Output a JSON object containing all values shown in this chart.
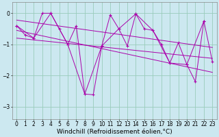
{
  "bg_color": "#cce8f0",
  "line_color": "#aa00aa",
  "grid_color": "#99ccbb",
  "xlabel": "Windchill (Refroidissement éolien,°C)",
  "xlabel_fontsize": 6.5,
  "tick_fontsize": 5.5,
  "ylim": [
    -3.4,
    0.35
  ],
  "xlim": [
    -0.5,
    23.5
  ],
  "yticks": [
    0,
    -1,
    -2,
    -3
  ],
  "xticks": [
    0,
    1,
    2,
    3,
    4,
    5,
    6,
    7,
    8,
    9,
    10,
    11,
    12,
    13,
    14,
    15,
    16,
    17,
    18,
    19,
    20,
    21,
    22,
    23
  ],
  "series1_x": [
    0,
    1,
    2,
    3,
    4,
    5,
    6,
    7,
    8,
    9,
    10,
    11,
    12,
    13,
    14,
    15,
    16,
    17,
    18,
    19,
    20,
    21,
    22,
    23
  ],
  "series1_y": [
    -0.4,
    -0.7,
    -0.8,
    0.0,
    0.0,
    -0.5,
    -1.0,
    -0.4,
    -2.6,
    -2.62,
    -1.05,
    -0.05,
    -0.5,
    -1.05,
    -0.02,
    -0.5,
    -0.55,
    -1.0,
    -1.6,
    -0.95,
    -1.65,
    -2.2,
    -0.25,
    -1.55
  ],
  "series2_x": [
    0,
    2,
    4,
    6,
    8,
    10,
    12,
    14,
    16,
    18,
    20,
    22
  ],
  "series2_y": [
    -0.4,
    -0.8,
    0.0,
    -1.0,
    -2.6,
    -1.05,
    -0.5,
    -0.02,
    -0.55,
    -1.6,
    -1.65,
    -0.25
  ],
  "trend1_x": [
    0,
    23
  ],
  "trend1_y": [
    -0.22,
    -1.1
  ],
  "trend2_x": [
    0,
    23
  ],
  "trend2_y": [
    -0.8,
    -1.45
  ],
  "trend3_x": [
    0,
    23
  ],
  "trend3_y": [
    -0.55,
    -1.9
  ]
}
